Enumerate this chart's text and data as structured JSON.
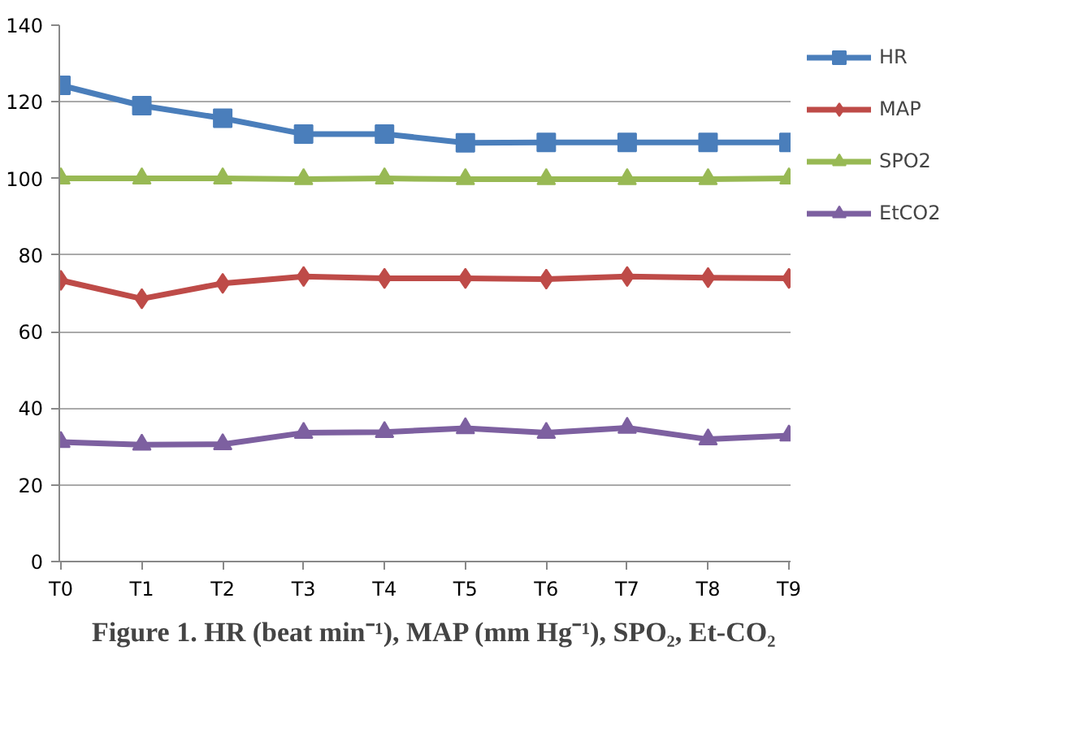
{
  "chart_data": {
    "type": "line",
    "title": "Figure 1. HR (beat min⁻¹), MAP (mm Hg⁻¹), SPO₂, Et-CO₂",
    "categories": [
      "T0",
      "T1",
      "T2",
      "T3",
      "T4",
      "T5",
      "T6",
      "T7",
      "T8",
      "T9"
    ],
    "series": [
      {
        "name": "HR",
        "color": "#4a7ebb",
        "marker": "square",
        "values": [
          124.3,
          119,
          115.7,
          111.6,
          111.6,
          109.3,
          109.4,
          109.4,
          109.4,
          109.4
        ]
      },
      {
        "name": "MAP",
        "color": "#be4b48",
        "marker": "diamond",
        "values": [
          73.4,
          68.6,
          72.6,
          74.4,
          73.9,
          73.9,
          73.7,
          74.4,
          74.1,
          73.9
        ]
      },
      {
        "name": "SPO2",
        "color": "#98b954",
        "marker": "triangle",
        "values": [
          100,
          100,
          100,
          99.8,
          100,
          99.8,
          99.8,
          99.8,
          99.8,
          100
        ]
      },
      {
        "name": "EtCO2",
        "color": "#7d60a0",
        "marker": "triangle",
        "values": [
          31.2,
          30.5,
          30.6,
          33.6,
          33.8,
          34.8,
          33.6,
          34.9,
          31.9,
          32.9
        ]
      }
    ],
    "ylim": [
      0,
      140
    ],
    "yticks": [
      0,
      20,
      40,
      60,
      80,
      100,
      120,
      140
    ],
    "grid": "y",
    "legend": "right"
  }
}
